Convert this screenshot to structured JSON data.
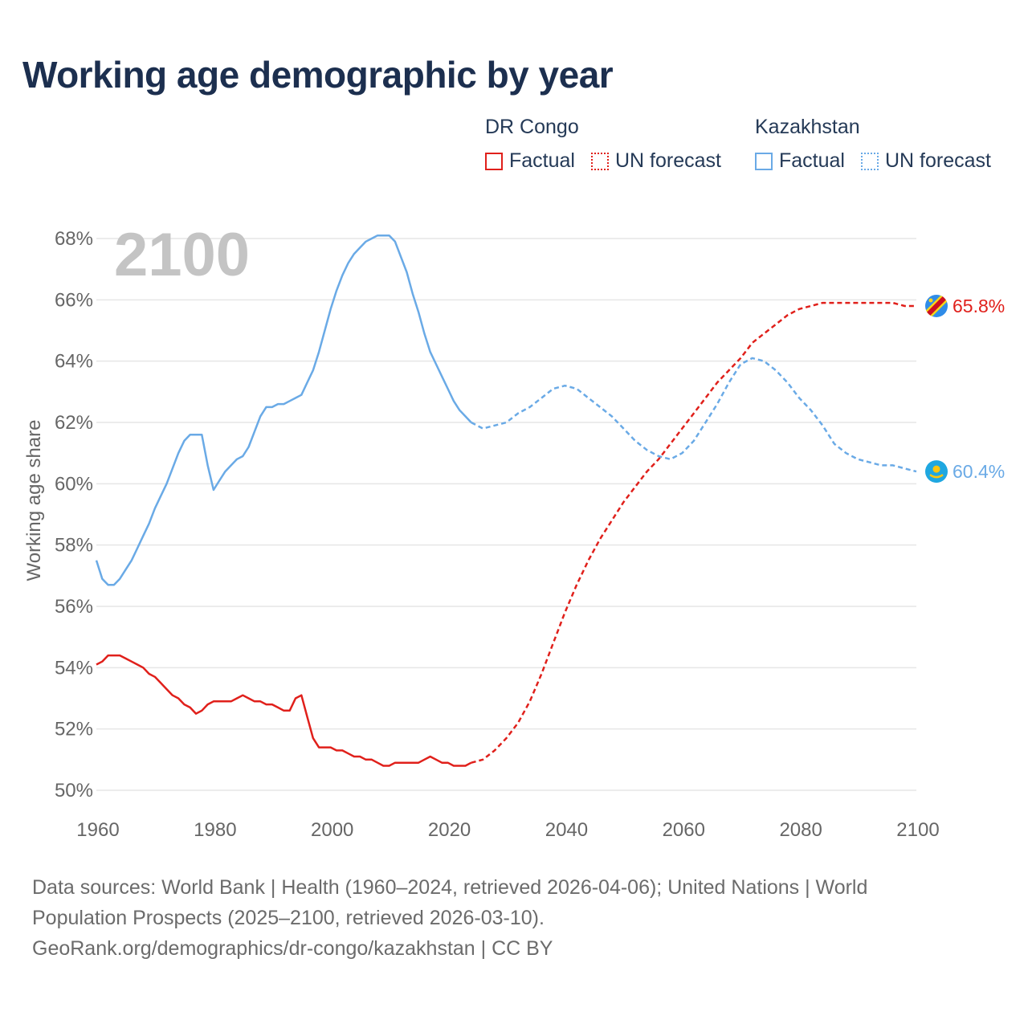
{
  "title": "Working age demographic by year",
  "legend": {
    "groups": [
      {
        "country": "DR Congo",
        "factual_label": "Factual",
        "forecast_label": "UN forecast"
      },
      {
        "country": "Kazakhstan",
        "factual_label": "Factual",
        "forecast_label": "UN forecast"
      }
    ]
  },
  "footer": {
    "line1": "Data sources: World Bank | Health (1960–2024, retrieved 2026-04-06); United Nations | World",
    "line2": "Population Prospects (2025–2100, retrieved 2026-03-10).",
    "line3": "GeoRank.org/demographics/dr-congo/kazakhstan | CC BY"
  },
  "colors": {
    "drc": "#e0201b",
    "kaz": "#6aaae6",
    "grid": "#e6e6e6",
    "axis_text": "#666666",
    "year_watermark": "#c4c4c4"
  },
  "chart_data": {
    "type": "line",
    "ylabel": "Working age share",
    "xlim": [
      1960,
      2100
    ],
    "ylim": [
      50,
      68
    ],
    "x_ticks": [
      1960,
      1980,
      2000,
      2020,
      2040,
      2060,
      2080,
      2100
    ],
    "y_ticks": [
      50,
      52,
      54,
      56,
      58,
      60,
      62,
      64,
      66,
      68
    ],
    "y_tick_suffix": "%",
    "current_year_label": "2100",
    "series": [
      {
        "name": "DR Congo",
        "color": "#e0201b",
        "end_label": "65.8%",
        "end_icon": "dr-congo-flag-icon",
        "factual": {
          "x": [
            1960,
            1961,
            1962,
            1963,
            1964,
            1965,
            1966,
            1967,
            1968,
            1969,
            1970,
            1971,
            1972,
            1973,
            1974,
            1975,
            1976,
            1977,
            1978,
            1979,
            1980,
            1981,
            1982,
            1983,
            1984,
            1985,
            1986,
            1987,
            1988,
            1989,
            1990,
            1991,
            1992,
            1993,
            1994,
            1995,
            1996,
            1997,
            1998,
            1999,
            2000,
            2001,
            2002,
            2003,
            2004,
            2005,
            2006,
            2007,
            2008,
            2009,
            2010,
            2011,
            2012,
            2013,
            2014,
            2015,
            2016,
            2017,
            2018,
            2019,
            2020,
            2021,
            2022,
            2023,
            2024
          ],
          "y": [
            54.1,
            54.2,
            54.4,
            54.4,
            54.4,
            54.3,
            54.2,
            54.1,
            54.0,
            53.8,
            53.7,
            53.5,
            53.3,
            53.1,
            53.0,
            52.8,
            52.7,
            52.5,
            52.6,
            52.8,
            52.9,
            52.9,
            52.9,
            52.9,
            53.0,
            53.1,
            53.0,
            52.9,
            52.9,
            52.8,
            52.8,
            52.7,
            52.6,
            52.6,
            53.0,
            53.1,
            52.4,
            51.7,
            51.4,
            51.4,
            51.4,
            51.3,
            51.3,
            51.2,
            51.1,
            51.1,
            51.0,
            51.0,
            50.9,
            50.8,
            50.8,
            50.9,
            50.9,
            50.9,
            50.9,
            50.9,
            51.0,
            51.1,
            51.0,
            50.9,
            50.9,
            50.8,
            50.8,
            50.8,
            50.9
          ]
        },
        "forecast": {
          "x": [
            2024,
            2026,
            2028,
            2030,
            2032,
            2034,
            2036,
            2038,
            2040,
            2042,
            2044,
            2046,
            2048,
            2050,
            2052,
            2054,
            2056,
            2058,
            2060,
            2062,
            2064,
            2066,
            2068,
            2070,
            2072,
            2074,
            2076,
            2078,
            2080,
            2082,
            2084,
            2086,
            2088,
            2090,
            2092,
            2094,
            2096,
            2098,
            2100
          ],
          "y": [
            50.9,
            51.0,
            51.3,
            51.7,
            52.2,
            52.9,
            53.8,
            54.8,
            55.8,
            56.7,
            57.5,
            58.2,
            58.8,
            59.4,
            59.9,
            60.4,
            60.8,
            61.3,
            61.8,
            62.3,
            62.8,
            63.3,
            63.7,
            64.1,
            64.6,
            64.9,
            65.2,
            65.5,
            65.7,
            65.8,
            65.9,
            65.9,
            65.9,
            65.9,
            65.9,
            65.9,
            65.9,
            65.8,
            65.8
          ]
        }
      },
      {
        "name": "Kazakhstan",
        "color": "#6aaae6",
        "end_label": "60.4%",
        "end_icon": "kazakhstan-flag-icon",
        "factual": {
          "x": [
            1960,
            1961,
            1962,
            1963,
            1964,
            1965,
            1966,
            1967,
            1968,
            1969,
            1970,
            1971,
            1972,
            1973,
            1974,
            1975,
            1976,
            1977,
            1978,
            1979,
            1980,
            1981,
            1982,
            1983,
            1984,
            1985,
            1986,
            1987,
            1988,
            1989,
            1990,
            1991,
            1992,
            1993,
            1994,
            1995,
            1996,
            1997,
            1998,
            1999,
            2000,
            2001,
            2002,
            2003,
            2004,
            2005,
            2006,
            2007,
            2008,
            2009,
            2010,
            2011,
            2012,
            2013,
            2014,
            2015,
            2016,
            2017,
            2018,
            2019,
            2020,
            2021,
            2022,
            2023,
            2024
          ],
          "y": [
            57.5,
            56.9,
            56.7,
            56.7,
            56.9,
            57.2,
            57.5,
            57.9,
            58.3,
            58.7,
            59.2,
            59.6,
            60.0,
            60.5,
            61.0,
            61.4,
            61.6,
            61.6,
            61.6,
            60.6,
            59.8,
            60.1,
            60.4,
            60.6,
            60.8,
            60.9,
            61.2,
            61.7,
            62.2,
            62.5,
            62.5,
            62.6,
            62.6,
            62.7,
            62.8,
            62.9,
            63.3,
            63.7,
            64.3,
            65.0,
            65.7,
            66.3,
            66.8,
            67.2,
            67.5,
            67.7,
            67.9,
            68.0,
            68.1,
            68.1,
            68.1,
            67.9,
            67.4,
            66.9,
            66.2,
            65.6,
            64.9,
            64.3,
            63.9,
            63.5,
            63.1,
            62.7,
            62.4,
            62.2,
            62.0
          ]
        },
        "forecast": {
          "x": [
            2024,
            2026,
            2028,
            2030,
            2032,
            2034,
            2036,
            2038,
            2040,
            2042,
            2044,
            2046,
            2048,
            2050,
            2052,
            2054,
            2056,
            2058,
            2060,
            2062,
            2064,
            2066,
            2068,
            2070,
            2072,
            2074,
            2076,
            2078,
            2080,
            2082,
            2084,
            2086,
            2088,
            2090,
            2092,
            2094,
            2096,
            2098,
            2100
          ],
          "y": [
            62.0,
            61.8,
            61.9,
            62.0,
            62.3,
            62.5,
            62.8,
            63.1,
            63.2,
            63.1,
            62.8,
            62.5,
            62.2,
            61.8,
            61.4,
            61.1,
            60.9,
            60.8,
            61.0,
            61.4,
            62.0,
            62.6,
            63.3,
            63.9,
            64.1,
            64.0,
            63.7,
            63.3,
            62.8,
            62.4,
            61.9,
            61.3,
            61.0,
            60.8,
            60.7,
            60.6,
            60.6,
            60.5,
            60.4
          ]
        }
      }
    ]
  }
}
